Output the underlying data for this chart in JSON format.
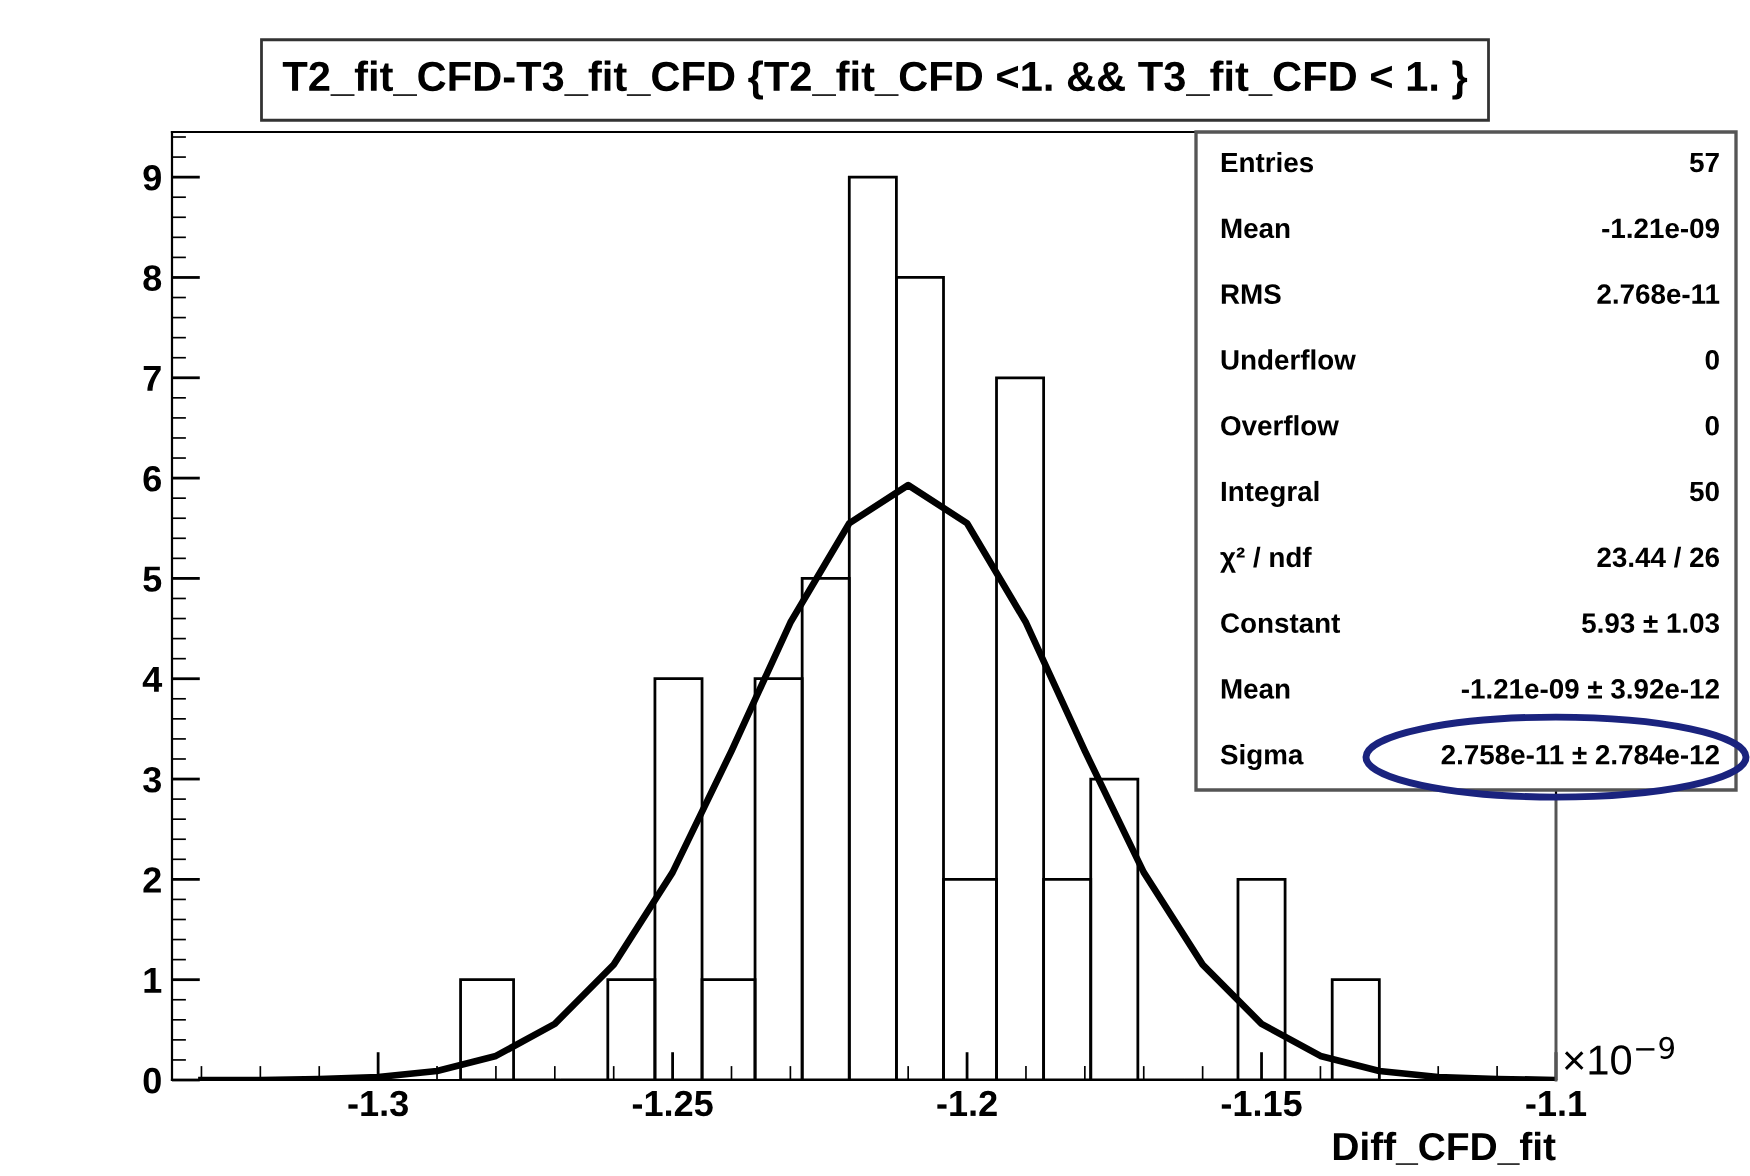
{
  "chart_data": {
    "type": "histogram",
    "title": "T2_fit_CFD-T3_fit_CFD {T2_fit_CFD <1. && T3_fit_CFD < 1. }",
    "xlabel": "Diff_CFD_fit",
    "bins": [
      -1.286,
      -1.277,
      -1.269,
      -1.261,
      -1.253,
      -1.245,
      -1.236,
      -1.228,
      -1.22,
      -1.212,
      -1.204,
      -1.195,
      -1.187,
      -1.179,
      -1.171,
      -1.163,
      -1.154,
      -1.146,
      -1.138,
      -1.13
    ],
    "values": [
      1,
      0,
      0,
      1,
      4,
      1,
      4,
      5,
      9,
      8,
      2,
      7,
      2,
      3,
      0,
      0,
      2,
      0,
      1
    ],
    "color": "#000000",
    "series": [
      {
        "type": "line",
        "color": "#000000",
        "x": [
          -1.33,
          -1.32,
          -1.31,
          -1.3,
          -1.29,
          -1.28,
          -1.27,
          -1.26,
          -1.25,
          -1.24,
          -1.23,
          -1.22,
          -1.21,
          -1.2,
          -1.19,
          -1.18,
          -1.17,
          -1.16,
          -1.15,
          -1.14,
          -1.13,
          -1.12,
          -1.11,
          -1.1
        ],
        "values": [
          0,
          0.0,
          0.01,
          0.03,
          0.09,
          0.24,
          0.56,
          1.15,
          2.07,
          3.28,
          4.56,
          5.55,
          5.93,
          5.55,
          4.56,
          3.28,
          2.07,
          1.15,
          0.56,
          0.24,
          0.09,
          0.03,
          0.01,
          0.0
        ]
      }
    ],
    "xlim": [
      -1.335,
      -1.1
    ],
    "ylim": [
      0,
      9.45
    ],
    "xticks": [
      -1.3,
      -1.25,
      -1.2,
      -1.15,
      -1.1
    ],
    "yticks": [
      0,
      1,
      2,
      3,
      4,
      5,
      6,
      7,
      8,
      9
    ],
    "grid": false,
    "annotations": [
      "×10$^{−9}$",
      "Entries",
      "57",
      "Mean",
      "-1.21e-09",
      "RMS",
      "2.768e-11",
      "Underflow",
      "0",
      "Overflow",
      "0",
      "Integral",
      "50",
      "χ² / ndf",
      "23.44 / 26",
      "Constant",
      "5.93 ± 1.03",
      "Mean",
      "-1.21e-09 ± 3.92e-12",
      "Sigma",
      "2.758e-11 ± 2.784e-12"
    ]
  }
}
